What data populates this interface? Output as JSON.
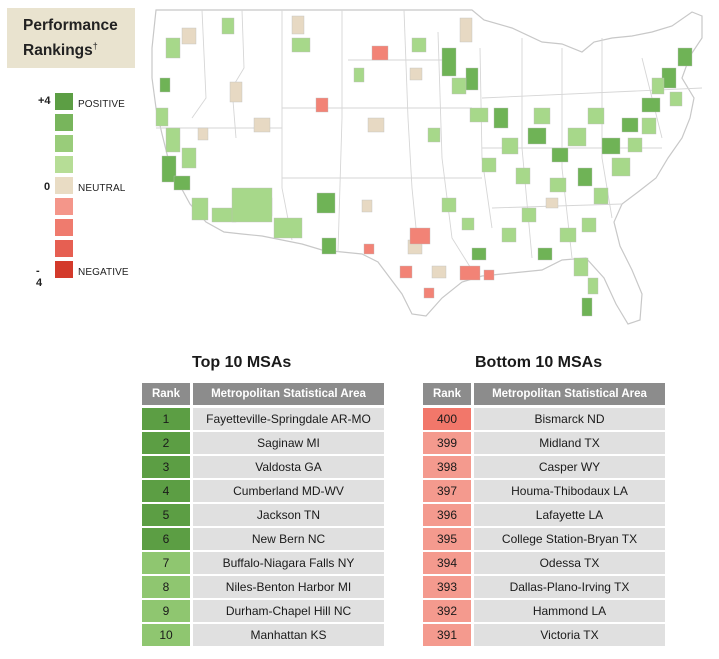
{
  "title": {
    "line1": "Performance",
    "line2": "Rankings",
    "dagger": "†"
  },
  "legend": {
    "max_label": "+4",
    "zero_label": "0",
    "min_label": "- 4",
    "positive_label": "POSITIVE",
    "neutral_label": "NEUTRAL",
    "negative_label": "NEGATIVE",
    "colors": [
      "#5c9e44",
      "#78b55c",
      "#99cc7a",
      "#b6dd96",
      "#e9dcc4",
      "#f4968a",
      "#ef7b6e",
      "#e65f52",
      "#d33a2b"
    ]
  },
  "map": {
    "colors": {
      "land": "#ffffff",
      "border": "#d3d3d3",
      "pos_strong": "#6fb356",
      "pos_light": "#a7d88a",
      "neutral": "#e7d9c3",
      "neg": "#f28376"
    }
  },
  "top": {
    "title": "Top 10 MSAs",
    "col_rank": "Rank",
    "col_area": "Metropolitan Statistical Area",
    "rows": [
      {
        "rank": "1",
        "area": "Fayetteville-Springdale AR-MO"
      },
      {
        "rank": "2",
        "area": "Saginaw MI"
      },
      {
        "rank": "3",
        "area": "Valdosta GA"
      },
      {
        "rank": "4",
        "area": "Cumberland MD-WV"
      },
      {
        "rank": "5",
        "area": "Jackson TN"
      },
      {
        "rank": "6",
        "area": "New Bern NC"
      },
      {
        "rank": "7",
        "area": "Buffalo-Niagara Falls NY"
      },
      {
        "rank": "8",
        "area": "Niles-Benton Harbor MI"
      },
      {
        "rank": "9",
        "area": "Durham-Chapel Hill NC"
      },
      {
        "rank": "10",
        "area": "Manhattan KS"
      }
    ]
  },
  "bottom": {
    "title": "Bottom 10 MSAs",
    "col_rank": "Rank",
    "col_area": "Metropolitan Statistical Area",
    "rows": [
      {
        "rank": "400",
        "area": "Bismarck ND"
      },
      {
        "rank": "399",
        "area": "Midland TX"
      },
      {
        "rank": "398",
        "area": "Casper WY"
      },
      {
        "rank": "397",
        "area": "Houma-Thibodaux LA"
      },
      {
        "rank": "396",
        "area": "Lafayette LA"
      },
      {
        "rank": "395",
        "area": "College Station-Bryan TX"
      },
      {
        "rank": "394",
        "area": "Odessa TX"
      },
      {
        "rank": "393",
        "area": "Dallas-Plano-Irving TX"
      },
      {
        "rank": "392",
        "area": "Hammond LA"
      },
      {
        "rank": "391",
        "area": "Victoria TX"
      }
    ]
  }
}
